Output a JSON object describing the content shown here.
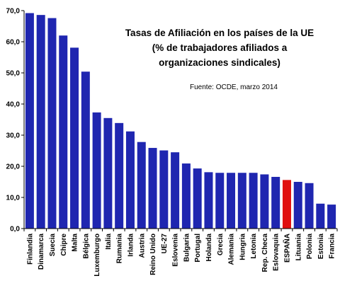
{
  "chart_data": {
    "type": "bar",
    "title_lines": [
      "Tasas de Afiliación en los países de la UE",
      "(% de trabajadores afiliados a",
      "organizaciones sindicales)"
    ],
    "source": "Fuente: OCDE, marzo  2014",
    "categories": [
      "Finlandia",
      "Dinamarca",
      "Suecia",
      "Chipre",
      "Malta",
      "Bélgica",
      "Luxemburgo",
      "Italia",
      "Rumania",
      "Irlanda",
      "Austria",
      "Reino Unido",
      "UE-27",
      "Eslovenia",
      "Bulgaria",
      "Portugal",
      "Holanda",
      "Grecia",
      "Alemania",
      "Hungria",
      "Letonia",
      "Rep. Checa",
      "Eslovaquia",
      "ESPAÑA",
      "Lituania",
      "Polonia",
      "Estonia",
      "Francia"
    ],
    "values": [
      69.2,
      68.6,
      67.6,
      62.0,
      58.1,
      50.4,
      37.3,
      35.5,
      33.9,
      31.2,
      27.8,
      25.9,
      25.1,
      24.5,
      20.9,
      19.3,
      18.1,
      17.9,
      17.9,
      17.9,
      17.9,
      17.4,
      16.6,
      15.6,
      15.0,
      14.6,
      8.0,
      7.7
    ],
    "ytick_labels": [
      "0,0",
      "10,0",
      "20,0",
      "30,0",
      "40,0",
      "50,0",
      "60,0",
      "70,0"
    ],
    "ylim": [
      0,
      70
    ],
    "grid": false,
    "colors": {
      "bar": "#1f26b0",
      "highlight": "#e01010",
      "highlight_category": "ESPAÑA"
    }
  }
}
